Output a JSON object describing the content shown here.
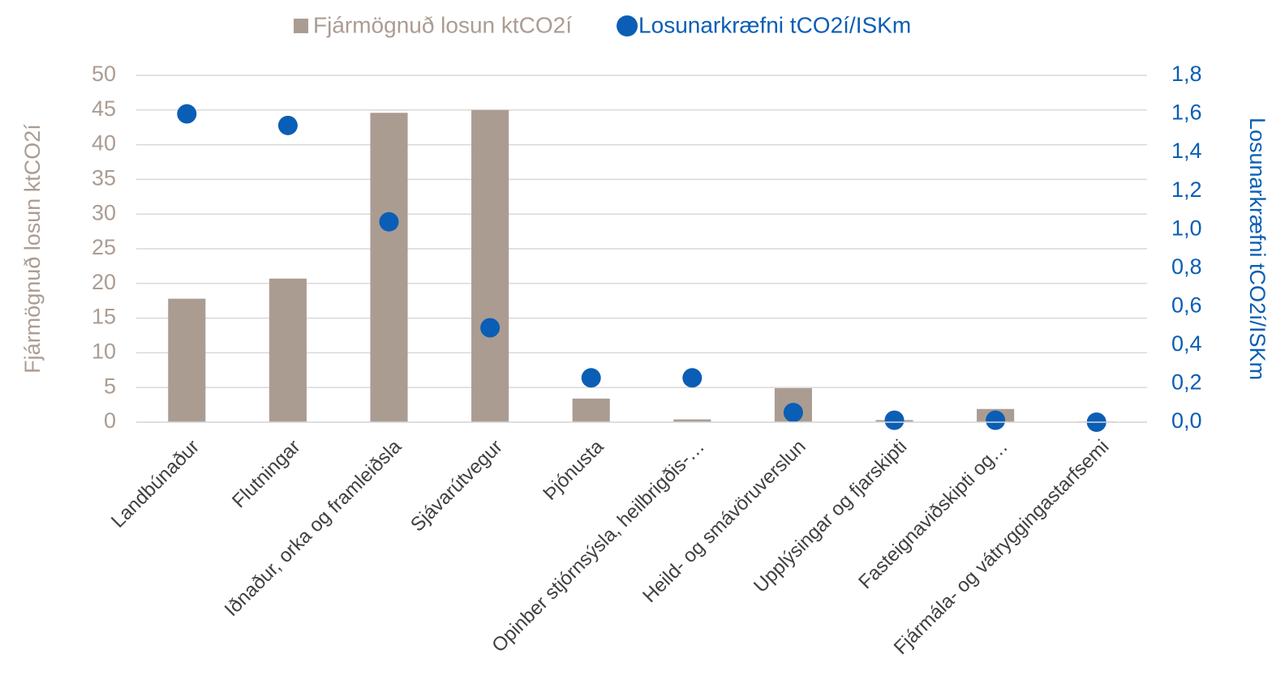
{
  "chart_data": {
    "type": "bar+scatter",
    "y_label": "Fjármögnuð losun ktCO2í",
    "y2_label": "Losunarkræfni tCO2í/ISKm",
    "categories": [
      "Landbúnaður",
      "Flutningar",
      "Iðnaður, orka og framleiðsla",
      "Sjávarútvegur",
      "Þjónusta",
      "Opinber stjórnsýsla, heilbrigðis-…",
      "Heild- og smávöruverslun",
      "Upplýsingar og fjarskipti",
      "Fasteignaviðskipti og…",
      "Fjármála- og vátryggingastarfsemi"
    ],
    "series": [
      {
        "name": "Fjármögnuð losun ktCO2í",
        "type": "bar",
        "color": "#ab9c92",
        "values": [
          17.8,
          20.7,
          44.6,
          45.0,
          3.4,
          0.4,
          4.9,
          0.3,
          1.9,
          0.1
        ]
      },
      {
        "name": "Losunarkræfni tCO2í/ISKm",
        "type": "scatter",
        "axis": "y2",
        "color": "#0a5eb5",
        "values": [
          1.6,
          1.54,
          1.04,
          0.49,
          0.23,
          0.23,
          0.05,
          0.01,
          0.01,
          0.0
        ]
      }
    ],
    "ylim": [
      0,
      50
    ],
    "yticks": [
      0,
      5,
      10,
      15,
      20,
      25,
      30,
      35,
      40,
      45,
      50
    ],
    "y2lim": [
      0,
      1.8
    ],
    "y2ticks": [
      {
        "value": 0,
        "label": "0,0"
      },
      {
        "value": 0.2,
        "label": "0,2"
      },
      {
        "value": 0.4,
        "label": "0,4"
      },
      {
        "value": 0.6,
        "label": "0,6"
      },
      {
        "value": 0.8,
        "label": "0,8"
      },
      {
        "value": 1.0,
        "label": "1,0"
      },
      {
        "value": 1.2,
        "label": "1,2"
      },
      {
        "value": 1.4,
        "label": "1,4"
      },
      {
        "value": 1.6,
        "label": "1,6"
      },
      {
        "value": 1.8,
        "label": "1,8"
      }
    ],
    "grid": true,
    "legend": "top"
  }
}
